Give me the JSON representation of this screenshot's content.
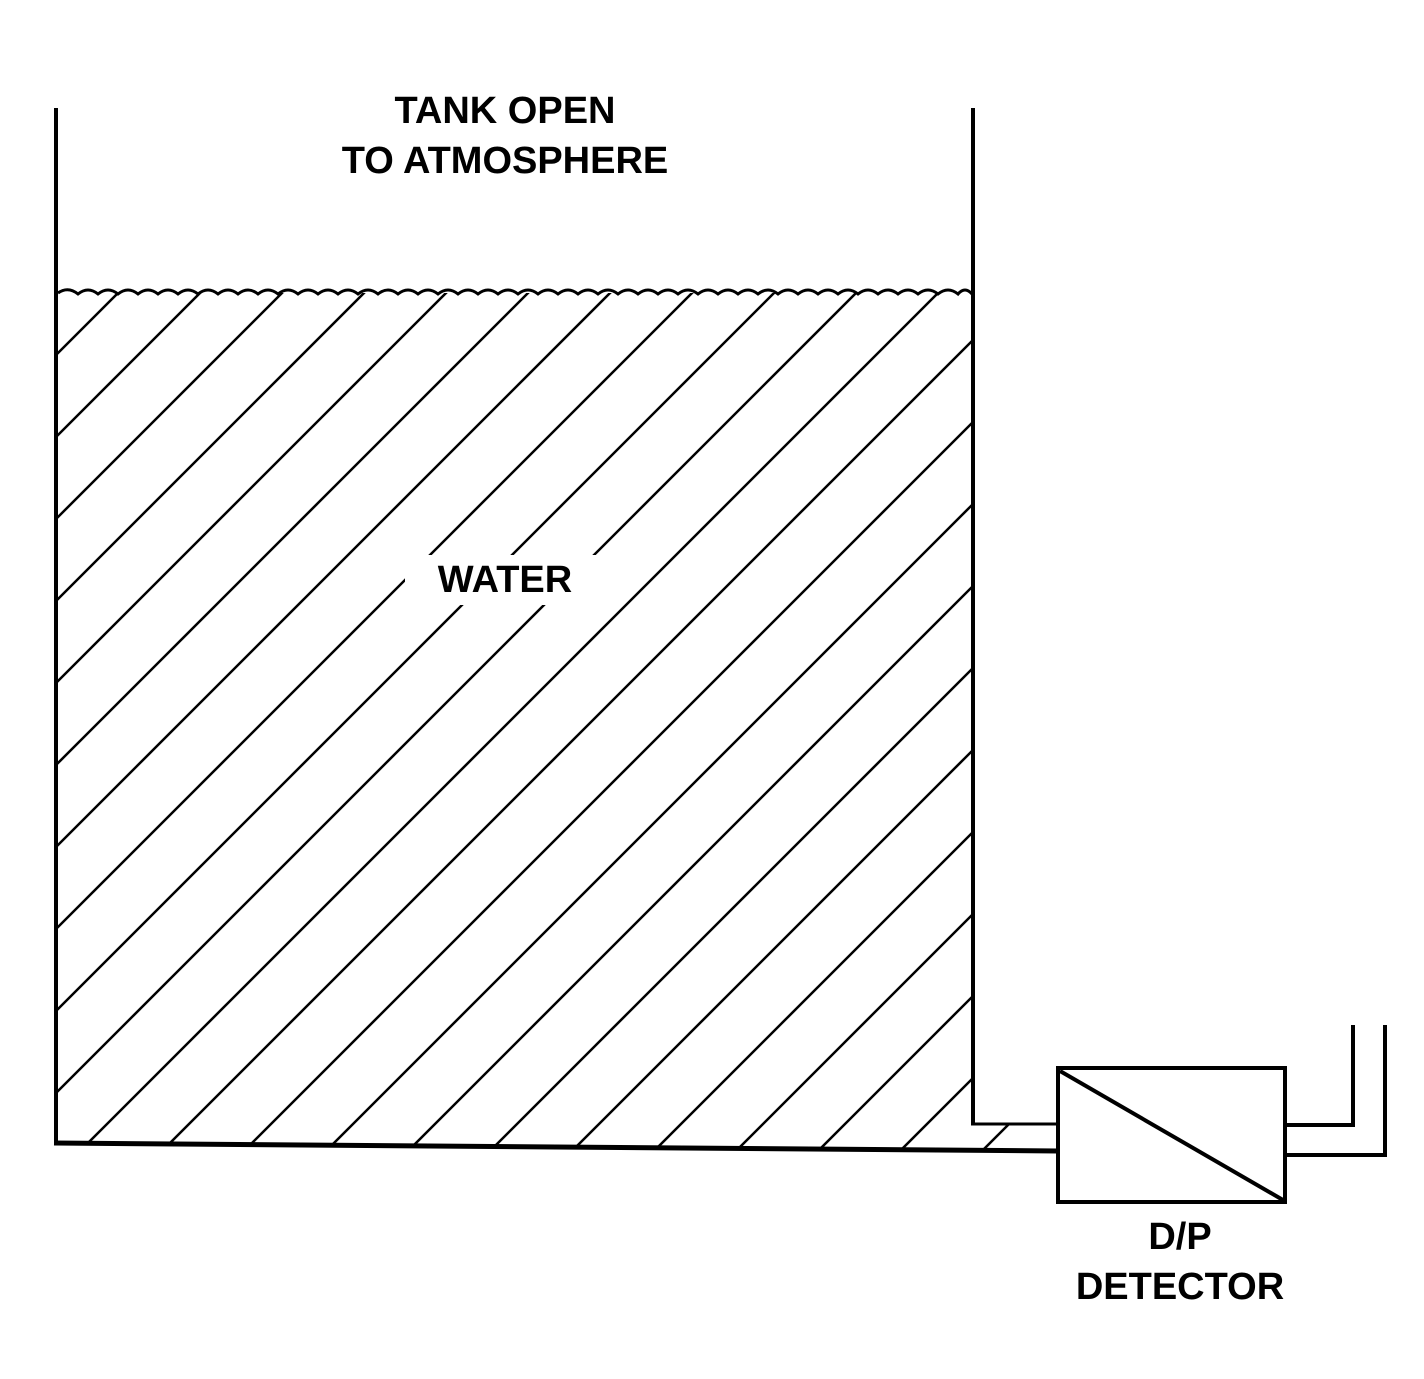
{
  "labels": {
    "tank_line1": "TANK OPEN",
    "tank_line2": "TO ATMOSPHERE",
    "water": "WATER",
    "dp_line1": "D/P",
    "dp_line2": "DETECTOR"
  },
  "colors": {
    "stroke": "#000000",
    "background": "#ffffff"
  }
}
